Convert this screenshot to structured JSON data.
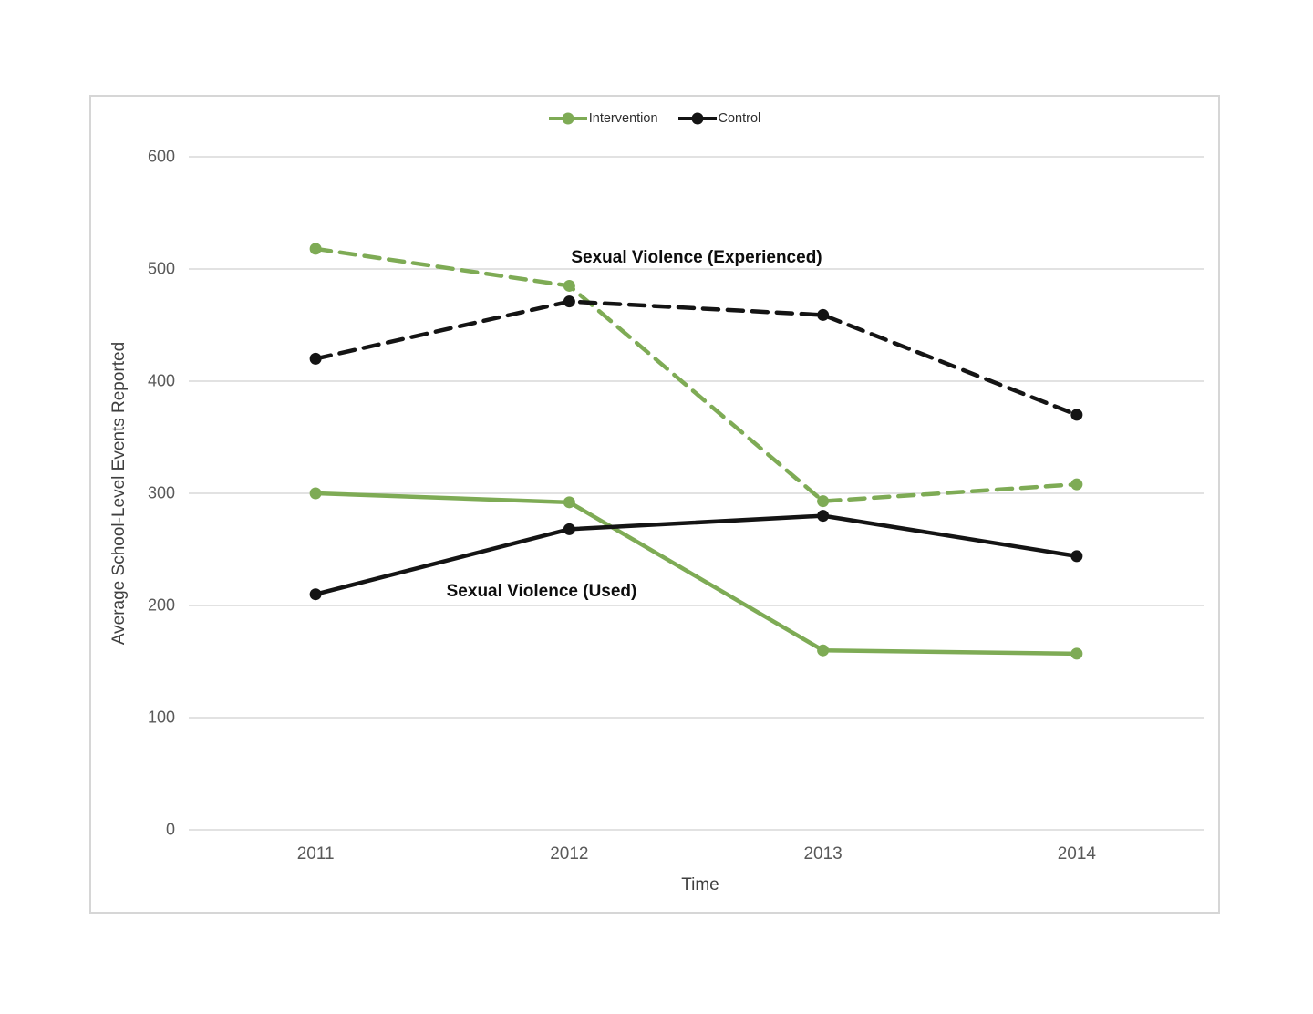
{
  "chart_data": {
    "type": "line",
    "x": [
      "2011",
      "2012",
      "2013",
      "2014"
    ],
    "xlabel": "Time",
    "ylabel": "Average School-Level Events Reported",
    "ylim": [
      0,
      600
    ],
    "yticks": [
      0,
      100,
      200,
      300,
      400,
      500,
      600
    ],
    "grid": "horizontal",
    "legend_position": "top-center",
    "colors": {
      "intervention": "#7EAB55",
      "control": "#141414",
      "gridline": "#d9d9d9",
      "tick_text": "#595959"
    },
    "legend": [
      {
        "label": "Intervention",
        "color_key": "intervention"
      },
      {
        "label": "Control",
        "color_key": "control"
      }
    ],
    "annotations": [
      {
        "text": "Sexual Violence (Experienced)"
      },
      {
        "text": "Sexual Violence (Used)"
      }
    ],
    "series": [
      {
        "name": "Intervention - Sexual Violence (Experienced)",
        "color_key": "intervention",
        "line_style": "dashed",
        "values": [
          518,
          485,
          293,
          308
        ]
      },
      {
        "name": "Control - Sexual Violence (Experienced)",
        "color_key": "control",
        "line_style": "dashed",
        "values": [
          420,
          471,
          459,
          370
        ]
      },
      {
        "name": "Intervention - Sexual Violence (Used)",
        "color_key": "intervention",
        "line_style": "solid",
        "values": [
          300,
          292,
          160,
          157
        ]
      },
      {
        "name": "Control - Sexual Violence (Used)",
        "color_key": "control",
        "line_style": "solid",
        "values": [
          210,
          268,
          280,
          244
        ]
      }
    ]
  }
}
